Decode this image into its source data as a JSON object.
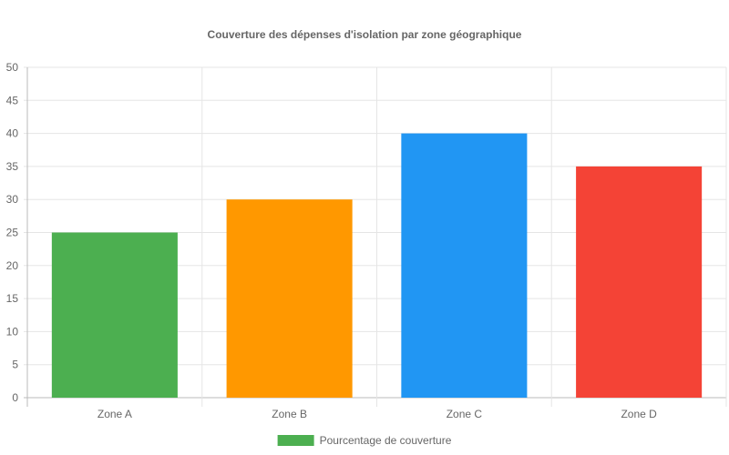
{
  "chart_data": {
    "type": "bar",
    "title": "Couverture des dépenses d'isolation par zone géographique",
    "categories": [
      "Zone A",
      "Zone B",
      "Zone C",
      "Zone D"
    ],
    "series": [
      {
        "name": "Pourcentage de couverture",
        "values": [
          25,
          30,
          40,
          35
        ],
        "colors": [
          "#4caf50",
          "#ff9800",
          "#2196f3",
          "#f44336"
        ]
      }
    ],
    "xlabel": "",
    "ylabel": "",
    "ylim": [
      0,
      50
    ],
    "ytick_step": 5,
    "grid": true,
    "legend_position": "bottom"
  }
}
